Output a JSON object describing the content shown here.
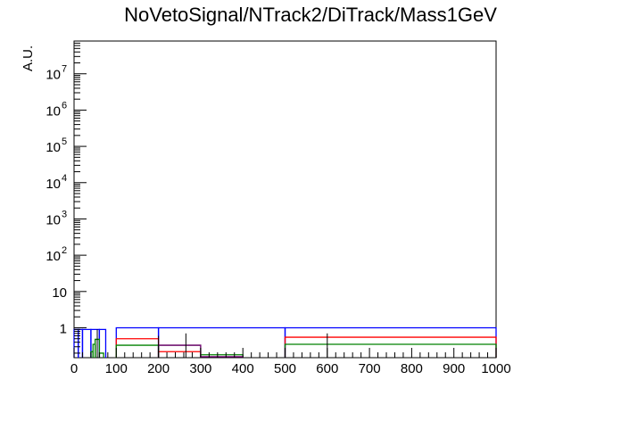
{
  "chart_data": {
    "type": "histogram",
    "title": "NoVetoSignal/NTrack2/DiTrack/Mass1GeV",
    "xlabel": "",
    "ylabel": "A.U.",
    "xlim": [
      0,
      1000
    ],
    "ylim": [
      0.15,
      80000000
    ],
    "yscale": "log",
    "grid": false,
    "legend": "none",
    "x_tick_labels": [
      "0",
      "100",
      "200",
      "300",
      "400",
      "500",
      "600",
      "700",
      "800",
      "900",
      "1000"
    ],
    "y_tick_labels": [
      {
        "base": "1",
        "exp": ""
      },
      {
        "base": "10",
        "exp": ""
      },
      {
        "base": "10",
        "exp": "2"
      },
      {
        "base": "10",
        "exp": "3"
      },
      {
        "base": "10",
        "exp": "4"
      },
      {
        "base": "10",
        "exp": "5"
      },
      {
        "base": "10",
        "exp": "6"
      },
      {
        "base": "10",
        "exp": "7"
      }
    ],
    "series": [
      {
        "color": "#0000ff",
        "bins": [
          {
            "x0": 0,
            "x1": 10,
            "y": 0.9
          },
          {
            "x0": 10,
            "x1": 20,
            "y": 0.9
          },
          {
            "x0": 20,
            "x1": 40,
            "y": 0.9
          },
          {
            "x0": 40,
            "x1": 60,
            "y": 0.9
          },
          {
            "x0": 60,
            "x1": 75,
            "y": 0.9
          },
          {
            "x0": 100,
            "x1": 200,
            "y": 1.0
          },
          {
            "x0": 200,
            "x1": 500,
            "y": 1.0
          },
          {
            "x0": 500,
            "x1": 1000,
            "y": 1.0
          }
        ]
      },
      {
        "color": "#ff0000",
        "bins": [
          {
            "x0": 100,
            "x1": 200,
            "y": 0.5
          },
          {
            "x0": 200,
            "x1": 300,
            "y": 0.22
          },
          {
            "x0": 500,
            "x1": 1000,
            "y": 0.55
          }
        ]
      },
      {
        "color": "#008000",
        "bins": [
          {
            "x0": 40,
            "x1": 45,
            "y": 0.22
          },
          {
            "x0": 45,
            "x1": 50,
            "y": 0.35
          },
          {
            "x0": 50,
            "x1": 60,
            "y": 0.48
          },
          {
            "x0": 60,
            "x1": 70,
            "y": 0.2
          },
          {
            "x0": 100,
            "x1": 200,
            "y": 0.33
          },
          {
            "x0": 200,
            "x1": 300,
            "y": 0.33
          },
          {
            "x0": 300,
            "x1": 400,
            "y": 0.18
          },
          {
            "x0": 500,
            "x1": 1000,
            "y": 0.35
          }
        ]
      },
      {
        "color": "#800080",
        "bins": [
          {
            "x0": 200,
            "x1": 300,
            "y": 0.33
          },
          {
            "x0": 300,
            "x1": 400,
            "y": 0.16
          }
        ]
      }
    ],
    "error_bars": [
      {
        "x": 200,
        "lo": 0.15,
        "hi": 0.6
      },
      {
        "x": 265,
        "lo": 0.15,
        "hi": 0.7
      },
      {
        "x": 600,
        "lo": 0.15,
        "hi": 0.7
      },
      {
        "x": 55,
        "lo": 0.15,
        "hi": 0.9
      }
    ]
  }
}
